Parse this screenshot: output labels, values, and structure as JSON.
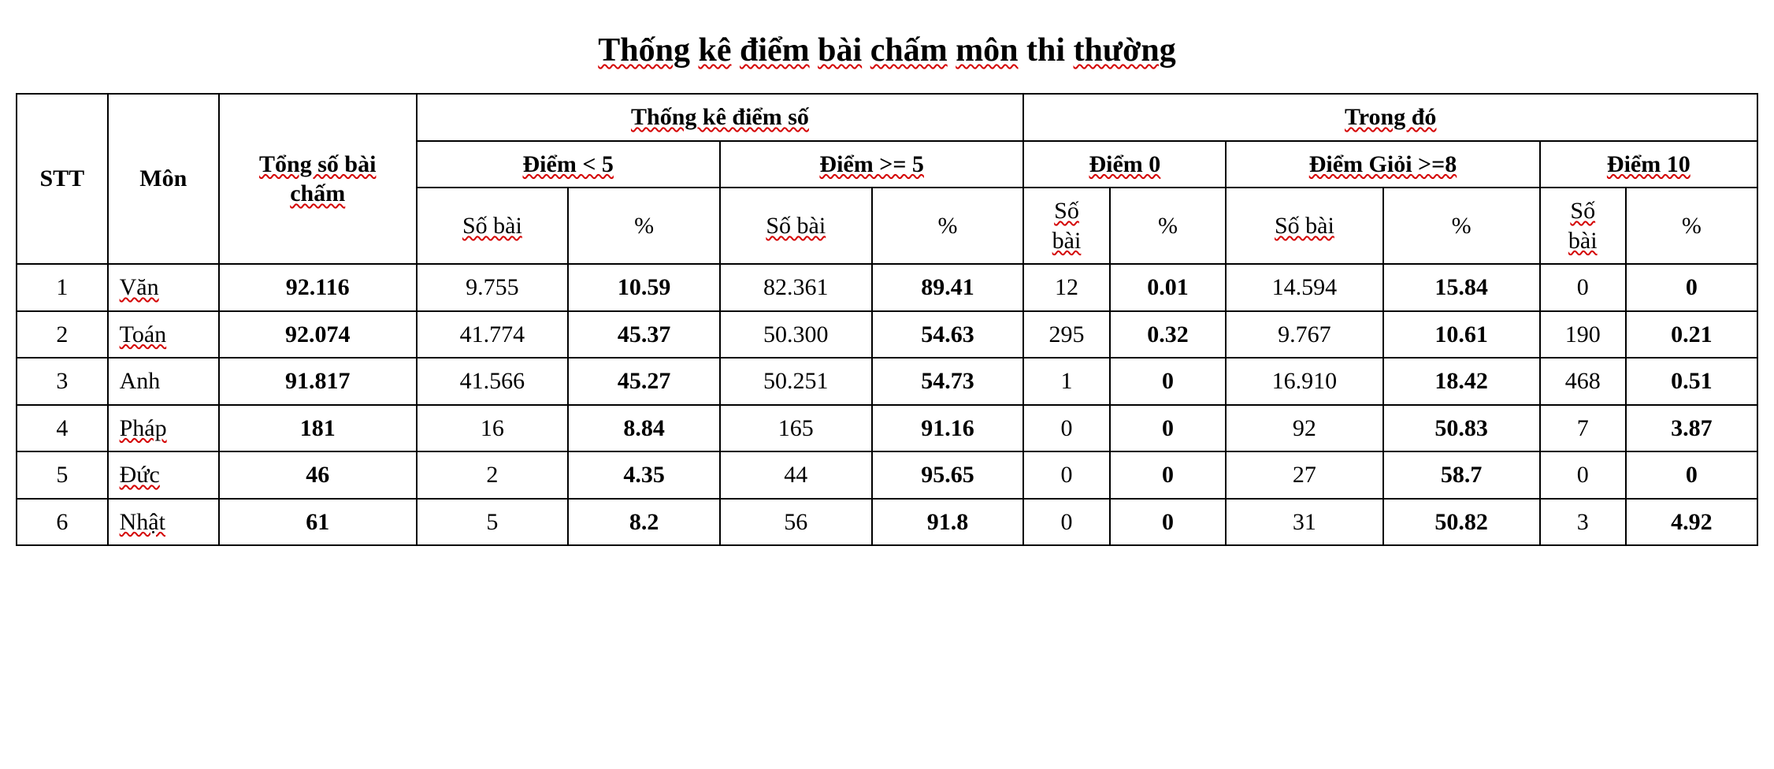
{
  "title": {
    "plain": "Thống kê điểm bài chấm môn thi thường"
  },
  "table": {
    "type": "table",
    "background_color": "#ffffff",
    "border_color": "#000000",
    "spellcheck_underline_color": "#d40000",
    "font_family": "Times New Roman",
    "title_fontsize": 42,
    "cell_fontsize": 30,
    "header": {
      "stt": "STT",
      "mon": "Môn",
      "tong_l1": "Tổng số bài",
      "tong_l2": "chấm",
      "group_tk": "Thống kê điểm số",
      "group_td": "Trong đó",
      "diem_lt5": "Điểm < 5",
      "diem_ge5": "Điểm >= 5",
      "diem_0": "Điểm 0",
      "diem_gioi": "Điểm Giỏi >=8",
      "diem_10": "Điểm 10",
      "so_bai": "Số bài",
      "so": "Số",
      "bai": "bài",
      "pct": "%"
    },
    "columns": [
      "stt",
      "mon",
      "tong",
      "lt5_so",
      "lt5_pct",
      "ge5_so",
      "ge5_pct",
      "d0_so",
      "d0_pct",
      "d8_so",
      "d8_pct",
      "d10_so",
      "d10_pct"
    ],
    "bold_columns": [
      "tong",
      "lt5_pct",
      "ge5_pct",
      "d0_pct",
      "d8_pct",
      "d10_pct"
    ],
    "rows": [
      {
        "stt": "1",
        "mon": "Văn",
        "tong": "92.116",
        "lt5_so": "9.755",
        "lt5_pct": "10.59",
        "ge5_so": "82.361",
        "ge5_pct": "89.41",
        "d0_so": "12",
        "d0_pct": "0.01",
        "d8_so": "14.594",
        "d8_pct": "15.84",
        "d10_so": "0",
        "d10_pct": "0"
      },
      {
        "stt": "2",
        "mon": "Toán",
        "tong": "92.074",
        "lt5_so": "41.774",
        "lt5_pct": "45.37",
        "ge5_so": "50.300",
        "ge5_pct": "54.63",
        "d0_so": "295",
        "d0_pct": "0.32",
        "d8_so": "9.767",
        "d8_pct": "10.61",
        "d10_so": "190",
        "d10_pct": "0.21"
      },
      {
        "stt": "3",
        "mon": "Anh",
        "tong": "91.817",
        "lt5_so": "41.566",
        "lt5_pct": "45.27",
        "ge5_so": "50.251",
        "ge5_pct": "54.73",
        "d0_so": "1",
        "d0_pct": "0",
        "d8_so": "16.910",
        "d8_pct": "18.42",
        "d10_so": "468",
        "d10_pct": "0.51"
      },
      {
        "stt": "4",
        "mon": "Pháp",
        "tong": "181",
        "lt5_so": "16",
        "lt5_pct": "8.84",
        "ge5_so": "165",
        "ge5_pct": "91.16",
        "d0_so": "0",
        "d0_pct": "0",
        "d8_so": "92",
        "d8_pct": "50.83",
        "d10_so": "7",
        "d10_pct": "3.87"
      },
      {
        "stt": "5",
        "mon": "Đức",
        "tong": "46",
        "lt5_so": "2",
        "lt5_pct": "4.35",
        "ge5_so": "44",
        "ge5_pct": "95.65",
        "d0_so": "0",
        "d0_pct": "0",
        "d8_so": "27",
        "d8_pct": "58.7",
        "d10_so": "0",
        "d10_pct": "0"
      },
      {
        "stt": "6",
        "mon": "Nhật",
        "tong": "61",
        "lt5_so": "5",
        "lt5_pct": "8.2",
        "ge5_so": "56",
        "ge5_pct": "91.8",
        "d0_so": "0",
        "d0_pct": "0",
        "d8_so": "31",
        "d8_pct": "50.82",
        "d10_so": "3",
        "d10_pct": "4.92"
      }
    ]
  }
}
